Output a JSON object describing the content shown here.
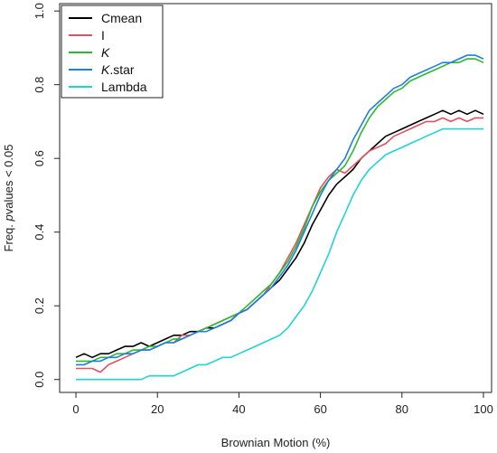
{
  "chart_data": {
    "type": "line",
    "title": "",
    "xlabel": "Brownian Motion (%)",
    "ylabel": "Freq. pvalues < 0.05",
    "xlim": [
      -4,
      102
    ],
    "ylim": [
      -0.035,
      1.02
    ],
    "xticks": [
      0,
      20,
      40,
      60,
      80,
      100
    ],
    "yticks": [
      0.0,
      0.2,
      0.4,
      0.6,
      0.8,
      1.0
    ],
    "xtick_labels": [
      "0",
      "20",
      "40",
      "60",
      "80",
      "100"
    ],
    "ytick_labels": [
      "0.0",
      "0.2",
      "0.4",
      "0.6",
      "0.8",
      "1.0"
    ],
    "grid": false,
    "legend_position": "top-left",
    "x": [
      0,
      2,
      4,
      6,
      8,
      10,
      12,
      14,
      16,
      18,
      20,
      22,
      24,
      26,
      28,
      30,
      32,
      34,
      36,
      38,
      40,
      42,
      44,
      46,
      48,
      50,
      52,
      54,
      56,
      58,
      60,
      62,
      64,
      66,
      68,
      70,
      72,
      74,
      76,
      78,
      80,
      82,
      84,
      86,
      88,
      90,
      92,
      94,
      96,
      98,
      100
    ],
    "series": [
      {
        "name": "Cmean",
        "color": "#000000",
        "values": [
          0.06,
          0.07,
          0.06,
          0.07,
          0.07,
          0.08,
          0.09,
          0.09,
          0.1,
          0.09,
          0.1,
          0.11,
          0.12,
          0.12,
          0.13,
          0.13,
          0.14,
          0.14,
          0.15,
          0.16,
          0.18,
          0.19,
          0.21,
          0.23,
          0.25,
          0.27,
          0.3,
          0.33,
          0.37,
          0.42,
          0.46,
          0.5,
          0.53,
          0.55,
          0.57,
          0.6,
          0.62,
          0.64,
          0.66,
          0.67,
          0.68,
          0.69,
          0.7,
          0.71,
          0.72,
          0.73,
          0.72,
          0.73,
          0.72,
          0.73,
          0.72
        ]
      },
      {
        "name": "I",
        "color": "#e05260",
        "values": [
          0.03,
          0.03,
          0.03,
          0.02,
          0.04,
          0.05,
          0.06,
          0.07,
          0.08,
          0.08,
          0.09,
          0.1,
          0.1,
          0.12,
          0.12,
          0.13,
          0.14,
          0.15,
          0.16,
          0.17,
          0.18,
          0.19,
          0.21,
          0.23,
          0.26,
          0.29,
          0.33,
          0.37,
          0.42,
          0.47,
          0.52,
          0.55,
          0.57,
          0.56,
          0.58,
          0.6,
          0.62,
          0.63,
          0.64,
          0.66,
          0.67,
          0.68,
          0.69,
          0.7,
          0.7,
          0.71,
          0.7,
          0.71,
          0.7,
          0.71,
          0.71
        ]
      },
      {
        "name": "K",
        "color": "#2eb82e",
        "values": [
          0.05,
          0.05,
          0.05,
          0.06,
          0.06,
          0.07,
          0.07,
          0.08,
          0.08,
          0.09,
          0.09,
          0.1,
          0.11,
          0.11,
          0.12,
          0.13,
          0.14,
          0.15,
          0.16,
          0.17,
          0.18,
          0.2,
          0.22,
          0.24,
          0.26,
          0.29,
          0.32,
          0.36,
          0.41,
          0.47,
          0.51,
          0.54,
          0.56,
          0.58,
          0.62,
          0.67,
          0.71,
          0.74,
          0.76,
          0.78,
          0.79,
          0.81,
          0.82,
          0.83,
          0.84,
          0.85,
          0.86,
          0.86,
          0.87,
          0.87,
          0.86
        ]
      },
      {
        "name": "K.star",
        "color": "#1f7fdc",
        "values": [
          0.04,
          0.04,
          0.05,
          0.05,
          0.06,
          0.06,
          0.07,
          0.07,
          0.08,
          0.08,
          0.09,
          0.1,
          0.1,
          0.11,
          0.12,
          0.13,
          0.13,
          0.14,
          0.15,
          0.16,
          0.18,
          0.19,
          0.21,
          0.23,
          0.25,
          0.28,
          0.31,
          0.35,
          0.4,
          0.45,
          0.5,
          0.54,
          0.57,
          0.6,
          0.65,
          0.69,
          0.73,
          0.75,
          0.77,
          0.79,
          0.8,
          0.82,
          0.83,
          0.84,
          0.85,
          0.86,
          0.86,
          0.87,
          0.88,
          0.88,
          0.87
        ]
      },
      {
        "name": "Lambda",
        "color": "#22d3d3",
        "values": [
          0.0,
          0.0,
          0.0,
          0.0,
          0.0,
          0.0,
          0.0,
          0.0,
          0.0,
          0.01,
          0.01,
          0.01,
          0.01,
          0.02,
          0.03,
          0.04,
          0.04,
          0.05,
          0.06,
          0.06,
          0.07,
          0.08,
          0.09,
          0.1,
          0.11,
          0.12,
          0.14,
          0.17,
          0.2,
          0.24,
          0.29,
          0.34,
          0.4,
          0.45,
          0.5,
          0.54,
          0.57,
          0.59,
          0.61,
          0.62,
          0.63,
          0.64,
          0.65,
          0.66,
          0.67,
          0.68,
          0.68,
          0.68,
          0.68,
          0.68,
          0.68
        ]
      }
    ]
  },
  "legend": {
    "entries": [
      {
        "label": "Cmean",
        "italic": false
      },
      {
        "label": "I",
        "italic": false
      },
      {
        "label": "K",
        "italic": true
      },
      {
        "label": "K.star",
        "italic": false,
        "italic_prefix": "K",
        "suffix": ".star"
      },
      {
        "label": "Lambda",
        "italic": false
      }
    ]
  }
}
